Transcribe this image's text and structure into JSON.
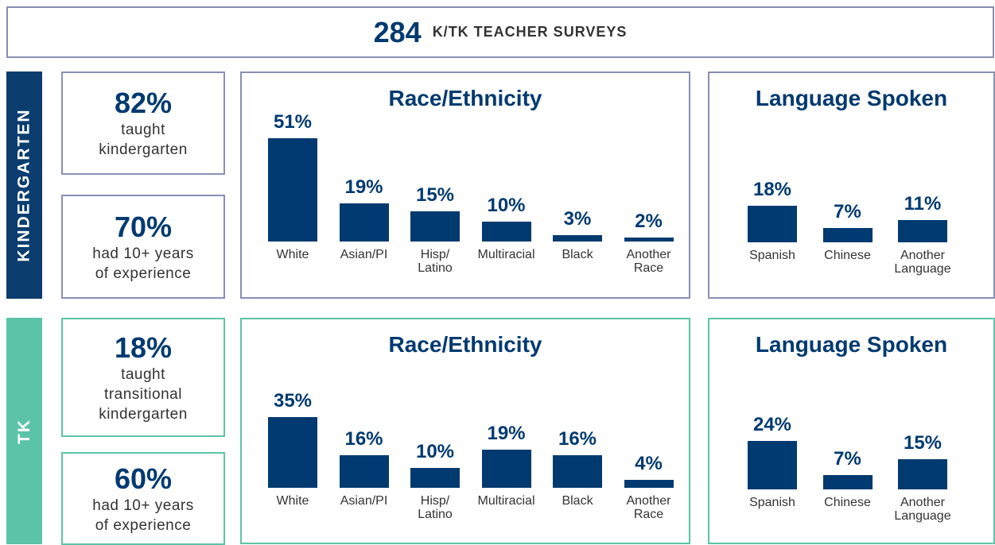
{
  "header": {
    "count": "284",
    "title": "K/TK TEACHER SURVEYS"
  },
  "sections": [
    {
      "label": "KINDERGARTEN",
      "color": "#0b3d6e",
      "border": "#8a8fb5",
      "stats": [
        {
          "value": "82%",
          "text": "taught\nkindergarten"
        },
        {
          "value": "70%",
          "text": "had 10+ years\nof experience"
        }
      ]
    },
    {
      "label": "TK",
      "color": "#5cc3a8",
      "border": "#5cc3a8",
      "stats": [
        {
          "value": "18%",
          "text": "taught\ntransitional\nkindergarten"
        },
        {
          "value": "60%",
          "text": "had 10+ years\nof experience"
        }
      ]
    }
  ],
  "chart_data": [
    {
      "type": "bar",
      "title": "Race/Ethnicity",
      "color": "#003a70",
      "categories": [
        "White",
        "Asian/PI",
        "Hisp/\nLatino",
        "Multiracial",
        "Black",
        "Another\nRace"
      ],
      "values": [
        51,
        19,
        15,
        10,
        3,
        2
      ],
      "value_labels": [
        "51%",
        "19%",
        "15%",
        "10%",
        "3%",
        "2%"
      ]
    },
    {
      "type": "bar",
      "title": "Language Spoken",
      "color": "#003a70",
      "categories": [
        "Spanish",
        "Chinese",
        "Another\nLanguage"
      ],
      "values": [
        18,
        7,
        11
      ],
      "value_labels": [
        "18%",
        "7%",
        "11%"
      ]
    },
    {
      "type": "bar",
      "title": "Race/Ethnicity",
      "color": "#003a70",
      "categories": [
        "White",
        "Asian/PI",
        "Hisp/\nLatino",
        "Multiracial",
        "Black",
        "Another\nRace"
      ],
      "values": [
        35,
        16,
        10,
        19,
        16,
        4
      ],
      "value_labels": [
        "35%",
        "16%",
        "10%",
        "19%",
        "16%",
        "4%"
      ]
    },
    {
      "type": "bar",
      "title": "Language Spoken",
      "color": "#003a70",
      "categories": [
        "Spanish",
        "Chinese",
        "Another\nLanguage"
      ],
      "values": [
        24,
        7,
        15
      ],
      "value_labels": [
        "24%",
        "7%",
        "15%"
      ]
    }
  ]
}
